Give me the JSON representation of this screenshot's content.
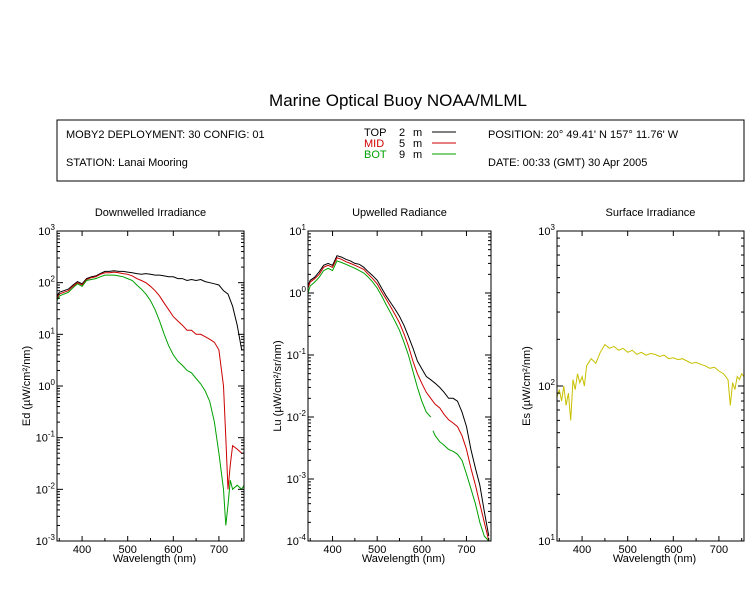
{
  "title": "Marine Optical Buoy NOAA/MLML",
  "info": {
    "deployment": "MOBY2 DEPLOYMENT: 30 CONFIG: 01",
    "station": "STATION: Lanai Mooring",
    "position": "POSITION: 20° 49.41' N   157° 11.76' W",
    "date": "DATE: 00:33 (GMT) 30 Apr 2005",
    "legend": [
      {
        "name": "TOP",
        "depth": "2",
        "unit": "m",
        "color": "#000000"
      },
      {
        "name": "MID",
        "depth": "5",
        "unit": "m",
        "color": "#cc0000"
      },
      {
        "name": "BOT",
        "depth": "9",
        "unit": "m",
        "color": "#00a000"
      }
    ]
  },
  "chart_data": [
    {
      "type": "line",
      "title": "Downwelled Irradiance",
      "xlabel": "Wavelength (nm)",
      "ylabel": "Ed  (µW/cm²/nm)",
      "yscale": "log",
      "xlim": [
        345,
        755
      ],
      "ylim": [
        0.001,
        1000
      ],
      "xticks": [
        400,
        500,
        600,
        700
      ],
      "yticks": [
        {
          "value": 1000,
          "base": "10",
          "exp": "3"
        },
        {
          "value": 100,
          "base": "10",
          "exp": "2"
        },
        {
          "value": 10,
          "base": "10",
          "exp": "1"
        },
        {
          "value": 1,
          "base": "10",
          "exp": "0"
        },
        {
          "value": 0.1,
          "base": "10",
          "exp": "-1"
        },
        {
          "value": 0.01,
          "base": "10",
          "exp": "-2"
        },
        {
          "value": 0.001,
          "base": "10",
          "exp": "-3"
        }
      ],
      "series": [
        {
          "name": "TOP",
          "color": "#000000",
          "x": [
            345,
            350,
            360,
            370,
            380,
            390,
            400,
            410,
            420,
            430,
            440,
            450,
            460,
            470,
            480,
            490,
            500,
            510,
            520,
            530,
            540,
            550,
            560,
            570,
            580,
            590,
            600,
            610,
            620,
            630,
            640,
            650,
            660,
            670,
            680,
            690,
            700,
            710,
            720,
            730,
            740,
            750,
            755
          ],
          "y": [
            55,
            65,
            70,
            75,
            90,
            105,
            95,
            120,
            130,
            135,
            150,
            165,
            165,
            170,
            165,
            165,
            160,
            155,
            150,
            145,
            150,
            145,
            140,
            140,
            135,
            130,
            130,
            120,
            120,
            110,
            115,
            110,
            115,
            105,
            100,
            95,
            90,
            70,
            60,
            35,
            15,
            5,
            5
          ]
        },
        {
          "name": "MID",
          "color": "#cc0000",
          "x": [
            345,
            350,
            360,
            370,
            380,
            390,
            400,
            410,
            420,
            430,
            440,
            450,
            460,
            470,
            480,
            490,
            500,
            510,
            520,
            530,
            540,
            550,
            560,
            570,
            580,
            590,
            600,
            610,
            620,
            630,
            640,
            650,
            660,
            670,
            680,
            690,
            700,
            710,
            715,
            720,
            725,
            730,
            740,
            750,
            755
          ],
          "y": [
            50,
            60,
            65,
            70,
            85,
            100,
            90,
            115,
            125,
            130,
            145,
            155,
            155,
            160,
            155,
            150,
            145,
            135,
            120,
            110,
            100,
            85,
            70,
            55,
            40,
            30,
            22,
            18,
            15,
            12,
            12,
            10,
            10,
            9,
            8,
            7,
            5,
            1,
            0.1,
            0.01,
            0.03,
            0.07,
            0.06,
            0.05,
            0.05
          ]
        },
        {
          "name": "BOT",
          "color": "#00a000",
          "x": [
            345,
            350,
            360,
            370,
            380,
            390,
            400,
            410,
            420,
            430,
            440,
            450,
            460,
            470,
            480,
            490,
            500,
            510,
            520,
            530,
            540,
            550,
            560,
            570,
            580,
            590,
            600,
            610,
            620,
            630,
            640,
            650,
            660,
            670,
            680,
            690,
            700,
            710,
            715,
            720,
            725,
            730,
            740,
            750,
            755
          ],
          "y": [
            45,
            55,
            60,
            65,
            80,
            95,
            85,
            110,
            115,
            120,
            130,
            140,
            140,
            140,
            135,
            130,
            120,
            110,
            90,
            75,
            60,
            45,
            30,
            18,
            10,
            6,
            4,
            3,
            2.5,
            2,
            1.8,
            1.4,
            1.1,
            0.8,
            0.5,
            0.2,
            0.05,
            0.01,
            0.002,
            0.005,
            0.015,
            0.01,
            0.012,
            0.01,
            0.012
          ]
        }
      ]
    },
    {
      "type": "line",
      "title": "Upwelled Radiance",
      "xlabel": "Wavelength (nm)",
      "ylabel": "Lu  (µW/cm²/sr/nm)",
      "yscale": "log",
      "xlim": [
        345,
        755
      ],
      "ylim": [
        0.0001,
        10
      ],
      "xticks": [
        400,
        500,
        600,
        700
      ],
      "yticks": [
        {
          "value": 10,
          "base": "10",
          "exp": "1"
        },
        {
          "value": 1,
          "base": "10",
          "exp": "0"
        },
        {
          "value": 0.1,
          "base": "10",
          "exp": "-1"
        },
        {
          "value": 0.01,
          "base": "10",
          "exp": "-2"
        },
        {
          "value": 0.001,
          "base": "10",
          "exp": "-3"
        },
        {
          "value": 0.0001,
          "base": "10",
          "exp": "-4"
        }
      ],
      "series": [
        {
          "name": "TOP",
          "color": "#000000",
          "x": [
            345,
            350,
            360,
            370,
            380,
            390,
            400,
            410,
            420,
            430,
            440,
            450,
            460,
            470,
            480,
            490,
            500,
            510,
            520,
            530,
            540,
            550,
            560,
            570,
            580,
            590,
            600,
            610,
            620,
            630,
            640,
            650,
            660,
            670,
            680,
            690,
            700,
            710,
            720,
            730,
            740,
            750
          ],
          "y": [
            1.3,
            1.6,
            1.8,
            2.2,
            2.8,
            3.0,
            2.8,
            4.0,
            3.8,
            3.5,
            3.3,
            3.0,
            2.9,
            2.6,
            2.2,
            1.9,
            1.6,
            1.2,
            0.9,
            0.7,
            0.55,
            0.42,
            0.3,
            0.2,
            0.13,
            0.08,
            0.06,
            0.045,
            0.04,
            0.035,
            0.03,
            0.025,
            0.02,
            0.02,
            0.018,
            0.012,
            0.007,
            0.003,
            0.0015,
            0.0008,
            0.0003,
            0.00012
          ]
        },
        {
          "name": "MID",
          "color": "#cc0000",
          "x": [
            345,
            350,
            360,
            370,
            380,
            390,
            400,
            410,
            420,
            430,
            440,
            450,
            460,
            470,
            480,
            490,
            500,
            510,
            520,
            530,
            540,
            550,
            560,
            570,
            580,
            590,
            600,
            610,
            620,
            630,
            640,
            650,
            660,
            670,
            680,
            690,
            700,
            710,
            720,
            730,
            740,
            750
          ],
          "y": [
            1.2,
            1.5,
            1.7,
            2.0,
            2.6,
            2.8,
            2.6,
            3.7,
            3.5,
            3.2,
            3.0,
            2.8,
            2.6,
            2.4,
            2.0,
            1.7,
            1.4,
            1.05,
            0.8,
            0.6,
            0.45,
            0.33,
            0.22,
            0.14,
            0.08,
            0.05,
            0.035,
            0.025,
            0.02,
            0.016,
            0.014,
            0.011,
            0.009,
            0.008,
            0.007,
            0.005,
            0.003,
            0.0015,
            0.0008,
            0.0004,
            0.0002,
            0.0001
          ]
        },
        {
          "name": "BOT",
          "color": "#00a000",
          "x": [
            345,
            350,
            360,
            370,
            380,
            390,
            400,
            410,
            420,
            430,
            440,
            450,
            460,
            470,
            480,
            490,
            500,
            510,
            520,
            530,
            540,
            550,
            560,
            570,
            580,
            590,
            600,
            610,
            620
          ],
          "y": [
            1.0,
            1.3,
            1.5,
            1.8,
            2.3,
            2.5,
            2.3,
            3.3,
            3.1,
            2.9,
            2.7,
            2.5,
            2.3,
            2.1,
            1.8,
            1.5,
            1.2,
            0.9,
            0.65,
            0.48,
            0.35,
            0.25,
            0.16,
            0.1,
            0.055,
            0.03,
            0.018,
            0.012,
            0.01
          ]
        },
        {
          "name": "BOT",
          "color": "#00a000",
          "x": [
            625,
            630,
            640,
            650,
            660,
            670,
            680,
            690,
            700,
            710,
            720,
            730,
            740,
            750
          ],
          "y": [
            0.006,
            0.005,
            0.004,
            0.0035,
            0.003,
            0.0028,
            0.0025,
            0.002,
            0.0012,
            0.0007,
            0.0004,
            0.0002,
            0.00012,
            0.0001
          ]
        }
      ]
    },
    {
      "type": "line",
      "title": "Surface Irradiance",
      "xlabel": "Wavelength (nm)",
      "ylabel": "Es  (µW/cm²/nm)",
      "yscale": "log",
      "xlim": [
        345,
        755
      ],
      "ylim": [
        10,
        1000
      ],
      "xticks": [
        400,
        500,
        600,
        700
      ],
      "yticks": [
        {
          "value": 1000,
          "base": "10",
          "exp": "3"
        },
        {
          "value": 100,
          "base": "10",
          "exp": "2"
        },
        {
          "value": 10,
          "base": "10",
          "exp": "1"
        }
      ],
      "series": [
        {
          "name": "Es",
          "color": "#c8c000",
          "x": [
            345,
            350,
            355,
            360,
            365,
            370,
            375,
            380,
            385,
            390,
            395,
            400,
            405,
            410,
            420,
            430,
            440,
            450,
            460,
            470,
            480,
            490,
            500,
            510,
            520,
            530,
            540,
            550,
            560,
            570,
            580,
            590,
            600,
            610,
            620,
            630,
            640,
            650,
            660,
            670,
            680,
            690,
            700,
            710,
            720,
            725,
            730,
            735,
            740,
            745,
            750,
            755
          ],
          "y": [
            85,
            95,
            80,
            100,
            75,
            90,
            60,
            110,
            95,
            120,
            105,
            115,
            100,
            135,
            150,
            140,
            165,
            185,
            175,
            180,
            170,
            175,
            165,
            170,
            160,
            165,
            158,
            162,
            160,
            155,
            158,
            150,
            152,
            148,
            150,
            145,
            140,
            142,
            138,
            135,
            130,
            132,
            125,
            120,
            110,
            75,
            105,
            95,
            115,
            110,
            120,
            115
          ]
        }
      ]
    }
  ]
}
